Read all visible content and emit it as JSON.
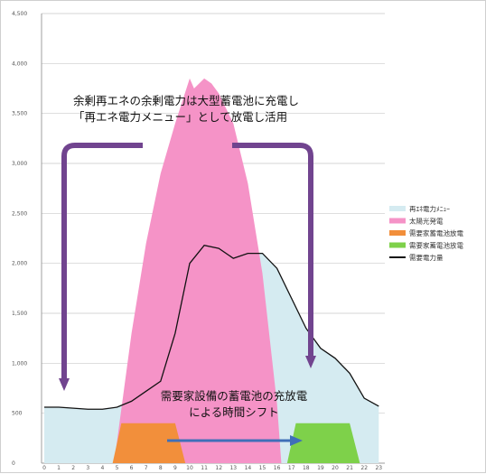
{
  "chart_data": {
    "type": "area",
    "x": [
      0,
      1,
      2,
      3,
      4,
      5,
      6,
      7,
      8,
      9,
      10,
      11,
      12,
      13,
      14,
      15,
      16,
      17,
      18,
      19,
      20,
      21,
      22,
      23
    ],
    "xlabel": "",
    "ylabel": "",
    "ylim": [
      0,
      4500
    ],
    "yticks": [
      "0",
      "500",
      "1,000",
      "1,500",
      "2,000",
      "2,500",
      "3,000",
      "3,500",
      "4,000",
      "4,500"
    ],
    "xticks": [
      "0",
      "1",
      "2",
      "3",
      "4",
      "5",
      "6",
      "7",
      "8",
      "9",
      "10",
      "11",
      "12",
      "13",
      "14",
      "15",
      "16",
      "17",
      "18",
      "19",
      "20",
      "21",
      "22",
      "23"
    ],
    "grid": true,
    "legend": "right",
    "series": [
      {
        "name": "再ｴﾈ電力ﾒﾆｭｰ",
        "kind": "area",
        "color": "#d5ebf1",
        "x": [
          0,
          1,
          2,
          3,
          4,
          5,
          6,
          7,
          8,
          9,
          10,
          11,
          12,
          13,
          14,
          15,
          16,
          17,
          18,
          19,
          20,
          21,
          22,
          23
        ],
        "values": [
          560,
          560,
          550,
          540,
          540,
          560,
          620,
          720,
          820,
          1300,
          2000,
          2180,
          2150,
          2050,
          2100,
          2100,
          1950,
          1650,
          1350,
          1150,
          1050,
          900,
          650,
          570
        ]
      },
      {
        "name": "太陽光発電",
        "kind": "area",
        "color": "#f593c7",
        "x": [
          4.8,
          6,
          7,
          8,
          9,
          10,
          10.3,
          11,
          11.5,
          12,
          13,
          14,
          15,
          16,
          16.3
        ],
        "values": [
          0,
          1300,
          2200,
          2900,
          3400,
          3850,
          3750,
          3850,
          3800,
          3700,
          3400,
          2800,
          1900,
          600,
          0
        ]
      },
      {
        "name": "需要家蓄電池放電",
        "kind": "area",
        "color": "#f28f3b",
        "x": [
          4.7,
          5.3,
          9,
          9.7
        ],
        "values": [
          0,
          400,
          400,
          0
        ]
      },
      {
        "name": "需要家蓄電池放電",
        "kind": "area",
        "color": "#7ed14a",
        "x": [
          16.7,
          17.3,
          21,
          21.7
        ],
        "values": [
          0,
          400,
          400,
          0
        ]
      },
      {
        "name": "需要電力量",
        "kind": "line",
        "color": "#111111",
        "x": [
          0,
          1,
          2,
          3,
          4,
          5,
          6,
          7,
          8,
          9,
          10,
          11,
          12,
          13,
          14,
          15,
          16,
          17,
          18,
          19,
          20,
          21,
          22,
          23
        ],
        "values": [
          560,
          560,
          550,
          540,
          540,
          560,
          620,
          720,
          820,
          1300,
          2000,
          2180,
          2150,
          2050,
          2100,
          2100,
          1950,
          1650,
          1350,
          1150,
          1050,
          900,
          650,
          570
        ]
      }
    ],
    "annotations": [
      "余剰再エネの余剰電力は大型蓄電池に充電し",
      "「再エネ電力メニュー」として放電し活用",
      "需要家設備の蓄電池の充放電",
      "による時間シフト"
    ]
  }
}
